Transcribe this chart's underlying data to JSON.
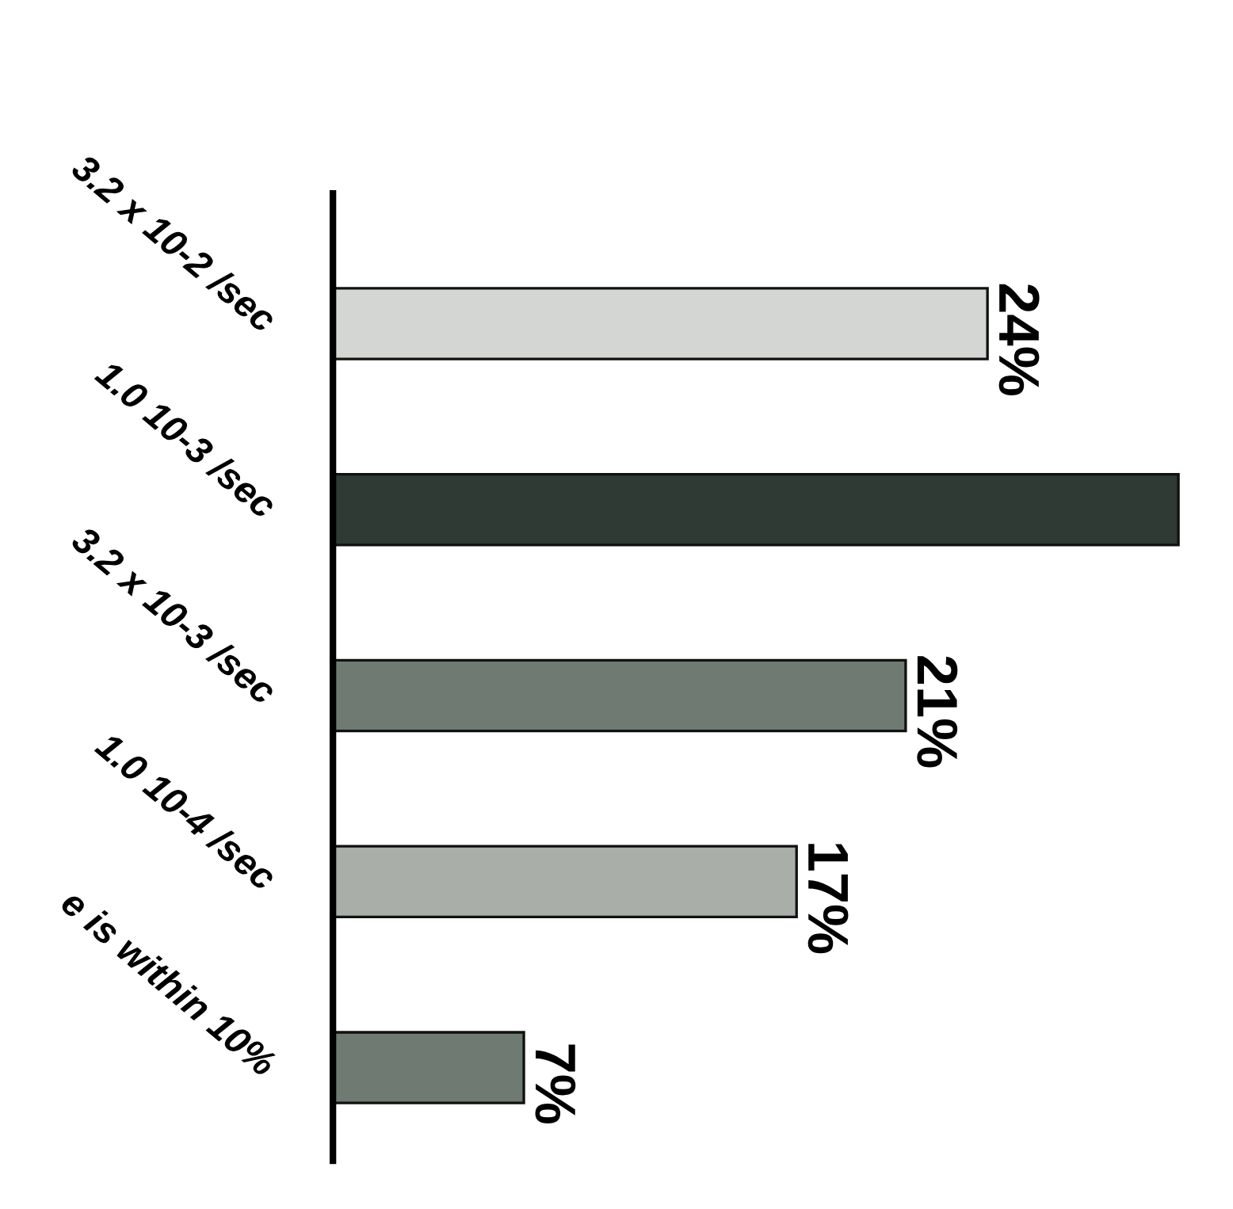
{
  "chart_data": {
    "type": "bar",
    "orientation": "horizontal",
    "categories": [
      "3.2 x 10-2 /sec",
      "1.0 10-3 /sec",
      "3.2 x 10-3 /sec",
      "1.0 10-4 /sec",
      "e is within 10%"
    ],
    "values": [
      24,
      31,
      21,
      17,
      7
    ],
    "value_labels": [
      "24%",
      null,
      "21%",
      "17%",
      "7%"
    ],
    "colors": [
      "#d4d6d3",
      "#2f3a34",
      "#6e7a72",
      "#a9aea9",
      "#6e7a72"
    ],
    "grid": false
  }
}
